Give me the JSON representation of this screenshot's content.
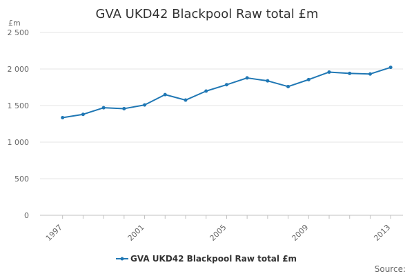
{
  "chart_data": {
    "type": "line",
    "title": "GVA UKD42 Blackpool Raw total £m",
    "unit_label": "£m",
    "source_label": "Source:",
    "x": [
      1997,
      1998,
      1999,
      2000,
      2001,
      2002,
      2003,
      2004,
      2005,
      2006,
      2007,
      2008,
      2009,
      2010,
      2011,
      2012,
      2013
    ],
    "x_tick_values": [
      1997,
      2001,
      2005,
      2009,
      2013
    ],
    "x_tick_labels": [
      "1997",
      "2001",
      "2005",
      "2009",
      "2013"
    ],
    "y_ticks": [
      0,
      500,
      1000,
      1500,
      2000,
      2500
    ],
    "y_tick_labels": [
      "0",
      "500",
      "1 000",
      "1 500",
      "2 000",
      "2 500"
    ],
    "ylim": [
      0,
      2500
    ],
    "grid": true,
    "legend_position": "bottom",
    "series": [
      {
        "name": "GVA UKD42 Blackpool Raw total £m",
        "color": "#1f77b4",
        "values": [
          1335,
          1380,
          1470,
          1458,
          1508,
          1650,
          1575,
          1698,
          1785,
          1878,
          1838,
          1760,
          1855,
          1958,
          1940,
          1932,
          2022
        ]
      }
    ]
  }
}
